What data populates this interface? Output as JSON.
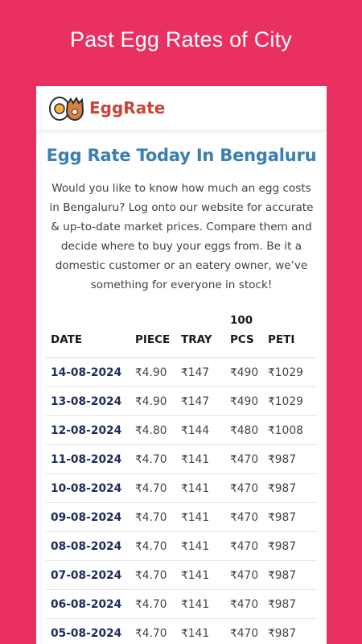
{
  "banner": {
    "title": "Past Egg Rates of City"
  },
  "app": {
    "brand": "EggRate",
    "logo_icon": "egg-logo-icon"
  },
  "page": {
    "title": "Egg Rate Today In Bengaluru",
    "intro": "Would you like to know how much an egg costs in Bengaluru? Log onto our website for accurate & up-to-date market prices. Compare them and decide where to buy your eggs from. Be it a domestic customer or an eatery owner, we’ve something for everyone in stock!"
  },
  "table": {
    "headers": {
      "date": "DATE",
      "piece": "PIECE",
      "tray": "TRAY",
      "pcs100_line1": "100",
      "pcs100_line2": "PCS",
      "peti": "PETI"
    },
    "rows": [
      {
        "date": "14-08-2024",
        "piece": "₹4.90",
        "tray": "₹147",
        "pcs100": "₹490",
        "peti": "₹1029"
      },
      {
        "date": "13-08-2024",
        "piece": "₹4.90",
        "tray": "₹147",
        "pcs100": "₹490",
        "peti": "₹1029"
      },
      {
        "date": "12-08-2024",
        "piece": "₹4.80",
        "tray": "₹144",
        "pcs100": "₹480",
        "peti": "₹1008"
      },
      {
        "date": "11-08-2024",
        "piece": "₹4.70",
        "tray": "₹141",
        "pcs100": "₹470",
        "peti": "₹987"
      },
      {
        "date": "10-08-2024",
        "piece": "₹4.70",
        "tray": "₹141",
        "pcs100": "₹470",
        "peti": "₹987"
      },
      {
        "date": "09-08-2024",
        "piece": "₹4.70",
        "tray": "₹141",
        "pcs100": "₹470",
        "peti": "₹987"
      },
      {
        "date": "08-08-2024",
        "piece": "₹4.70",
        "tray": "₹141",
        "pcs100": "₹470",
        "peti": "₹987"
      },
      {
        "date": "07-08-2024",
        "piece": "₹4.70",
        "tray": "₹141",
        "pcs100": "₹470",
        "peti": "₹987"
      },
      {
        "date": "06-08-2024",
        "piece": "₹4.70",
        "tray": "₹141",
        "pcs100": "₹470",
        "peti": "₹987"
      },
      {
        "date": "05-08-2024",
        "piece": "₹4.70",
        "tray": "₹141",
        "pcs100": "₹470",
        "peti": "₹987"
      }
    ]
  },
  "colors": {
    "background": "#e93060",
    "brand": "#c9453a",
    "title": "#3a7fb0",
    "date": "#1f2b5a"
  }
}
